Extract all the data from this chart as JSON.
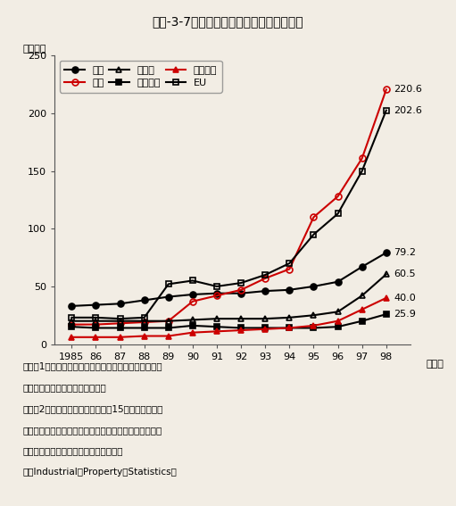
{
  "title": "第２-3-7図　主要国の特許出願件数の推移",
  "ylabel": "（万件）",
  "xlabel_suffix": "（年）",
  "years": [
    1985,
    1986,
    1987,
    1988,
    1989,
    1990,
    1991,
    1992,
    1993,
    1994,
    1995,
    1996,
    1997,
    1998
  ],
  "xticklabels": [
    "1985",
    "86",
    "87",
    "88",
    "89",
    "90",
    "91",
    "92",
    "93",
    "94",
    "95",
    "96",
    "97",
    "98"
  ],
  "series_order": [
    "日本",
    "米国",
    "ドイツ",
    "フランス",
    "イギリス",
    "EU"
  ],
  "series": {
    "日本": {
      "data": [
        33,
        34,
        35,
        38,
        41,
        43,
        44,
        44,
        46,
        47,
        50,
        54,
        67,
        79.2
      ],
      "color": "#000000",
      "marker": "o",
      "markerface": "filled",
      "linewidth": 1.5,
      "label_value": "79.2"
    },
    "米国": {
      "data": [
        17,
        17,
        18,
        19,
        20,
        37,
        42,
        47,
        57,
        65,
        110,
        128,
        161,
        220.6
      ],
      "color": "#cc0000",
      "marker": "o",
      "markerface": "none",
      "linewidth": 1.5,
      "label_value": "220.6"
    },
    "ドイツ": {
      "data": [
        20,
        20,
        20,
        20,
        20,
        21,
        22,
        22,
        22,
        23,
        25,
        28,
        42,
        60.5
      ],
      "color": "#000000",
      "marker": "^",
      "markerface": "none",
      "linewidth": 1.5,
      "label_value": "60.5"
    },
    "フランス": {
      "data": [
        15,
        14,
        14,
        14,
        14,
        16,
        15,
        14,
        14,
        14,
        14,
        15,
        20,
        25.9
      ],
      "color": "#000000",
      "marker": "s",
      "markerface": "filled",
      "linewidth": 1.5,
      "label_value": "25.9"
    },
    "イギリス": {
      "data": [
        6,
        6,
        6,
        7,
        7,
        10,
        11,
        12,
        13,
        14,
        16,
        20,
        30,
        40.0
      ],
      "color": "#cc0000",
      "marker": "^",
      "markerface": "filled",
      "linewidth": 1.5,
      "label_value": "40.0"
    },
    "EU": {
      "data": [
        23,
        23,
        22,
        23,
        52,
        55,
        50,
        53,
        60,
        70,
        95,
        113,
        150,
        202.6
      ],
      "color": "#000000",
      "marker": "s",
      "markerface": "none",
      "linewidth": 1.5,
      "label_value": "202.6"
    }
  },
  "ylim": [
    0,
    250
  ],
  "yticks": [
    0,
    50,
    100,
    150,
    200,
    250
  ],
  "bg_color": "#f2ede4",
  "plot_area_color": "#f2ede4",
  "note_line1": "注）　1．出願人の国籍別に対自国及び対外国に出願が",
  "note_line2": "　　　　なされた件数の合計値。",
  "note_line3": "　　　2．ＥＵの数値は現在の加盟15か国の合計値。",
  "note_line4": "資料：特許庁「特許庁年報」、「特許行政年次報告書」",
  "note_line5": "　　　世界知的所有権機関（ＷＩＰＯ）",
  "note_line6": "　「Industrial　Property　Statistics」"
}
